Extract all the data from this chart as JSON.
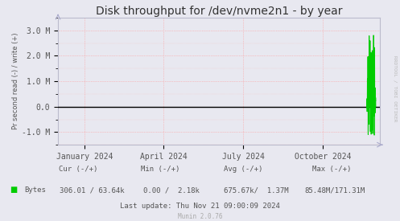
{
  "title": "Disk throughput for /dev/nvme2n1 - by year",
  "ylabel": "Pr second read (-) / write (+)",
  "background_color": "#e8e8f0",
  "plot_bg_color": "#e8e8f0",
  "grid_color": "#ff9999",
  "line_color": "#00cc00",
  "ylim": [
    -1500000,
    3500000
  ],
  "yticks": [
    -1000000,
    0,
    1000000,
    2000000,
    3000000
  ],
  "ytick_labels": [
    "-1.0 M",
    "0.0",
    "1.0 M",
    "2.0 M",
    "3.0 M"
  ],
  "xtick_labels": [
    "January 2024",
    "April 2024",
    "July 2024",
    "October 2024"
  ],
  "xtick_positions": [
    0.083,
    0.327,
    0.575,
    0.822
  ],
  "watermark": "RRDTOOL / TOBI OETIKER",
  "legend_label": "Bytes",
  "legend_color": "#00cc00",
  "footer_line3": "Last update: Thu Nov 21 09:00:09 2024",
  "munin_version": "Munin 2.0.76",
  "title_fontsize": 10,
  "axis_fontsize": 7,
  "footer_fontsize": 6.5
}
